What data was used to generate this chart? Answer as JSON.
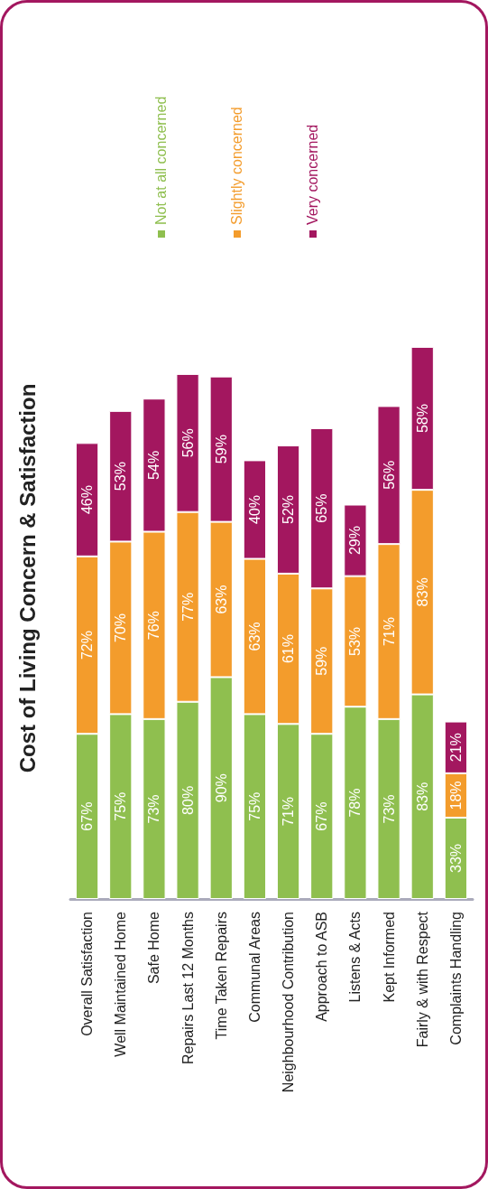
{
  "chart_data": {
    "type": "bar",
    "title": "Cost of Living Concern & Satisfaction",
    "stacked": true,
    "tick_labels": "x",
    "grid": false,
    "legend": "top",
    "categories": [
      "Overall Satisfaction",
      "Well Maintained Home",
      "Safe Home",
      "Repairs Last 12 Months",
      "Time Taken Repairs",
      "Communal Areas",
      "Neighbourhood Contribution",
      "Approach to ASB",
      "Listens & Acts",
      "Kept Informed",
      "Fairly & with Respect",
      "Complaints Handling"
    ],
    "series": [
      {
        "name": "Not at all concerned",
        "color": "#8fbf4f",
        "values": [
          67,
          75,
          73,
          80,
          90,
          75,
          71,
          67,
          78,
          73,
          83,
          33
        ],
        "value_labels": [
          "67%",
          "75%",
          "73%",
          "80%",
          "90%",
          "75%",
          "71%",
          "67%",
          "78%",
          "73%",
          "83%",
          "33%"
        ]
      },
      {
        "name": "Slightly concerned",
        "color": "#f39c2c",
        "values": [
          72,
          70,
          76,
          77,
          63,
          63,
          61,
          59,
          53,
          71,
          83,
          18
        ],
        "value_labels": [
          "72%",
          "70%",
          "76%",
          "77%",
          "63%",
          "63%",
          "61%",
          "59%",
          "53%",
          "71%",
          "83%",
          "18%"
        ]
      },
      {
        "name": "Very concerned",
        "color": "#a3175f",
        "values": [
          46,
          53,
          54,
          56,
          59,
          40,
          52,
          65,
          29,
          56,
          58,
          21
        ],
        "value_labels": [
          "46%",
          "53%",
          "54%",
          "56%",
          "59%",
          "40%",
          "52%",
          "65%",
          "29%",
          "56%",
          "58%",
          "21%"
        ]
      }
    ]
  }
}
